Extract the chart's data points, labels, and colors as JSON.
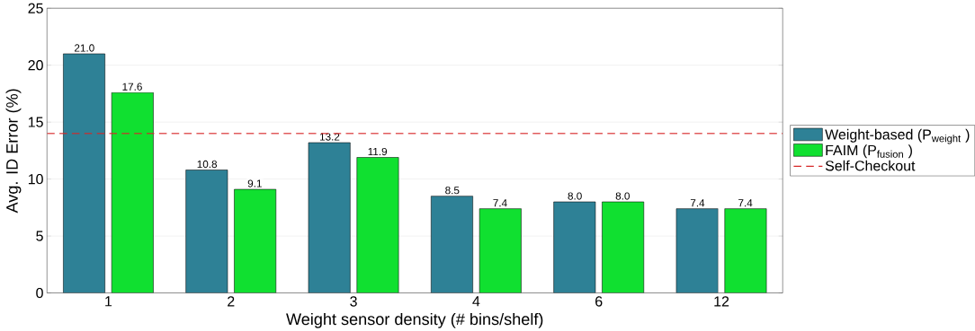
{
  "chart_data": {
    "type": "bar",
    "xlabel": "Weight sensor density (# bins/shelf)",
    "ylabel": "Avg. ID Error (%)",
    "categories": [
      "1",
      "2",
      "3",
      "4",
      "6",
      "12"
    ],
    "series": [
      {
        "name": "Weight-based (P$_{weight}$ )",
        "color": "#2e8196",
        "values": [
          21.0,
          10.8,
          13.2,
          8.5,
          8.0,
          7.4
        ],
        "value_labels": [
          "21.0",
          "10.8",
          "13.2",
          "8.5",
          "8.0",
          "7.4"
        ]
      },
      {
        "name": "FAIM (P$_{fusion}$ )",
        "color": "#10e030",
        "values": [
          17.6,
          9.1,
          11.9,
          7.4,
          8.0,
          7.4
        ],
        "value_labels": [
          "17.6",
          "9.1",
          "11.9",
          "7.4",
          "8.0",
          "7.4"
        ]
      }
    ],
    "ref_lines": [
      {
        "axis": "y",
        "value": 14,
        "label": "Self-Checkout",
        "color": "#d62728",
        "line_style": "dashed"
      }
    ],
    "ylim": [
      0,
      25
    ],
    "yticks": [
      0,
      5,
      10,
      15,
      20,
      25
    ],
    "grid": "y",
    "legend": "right"
  }
}
